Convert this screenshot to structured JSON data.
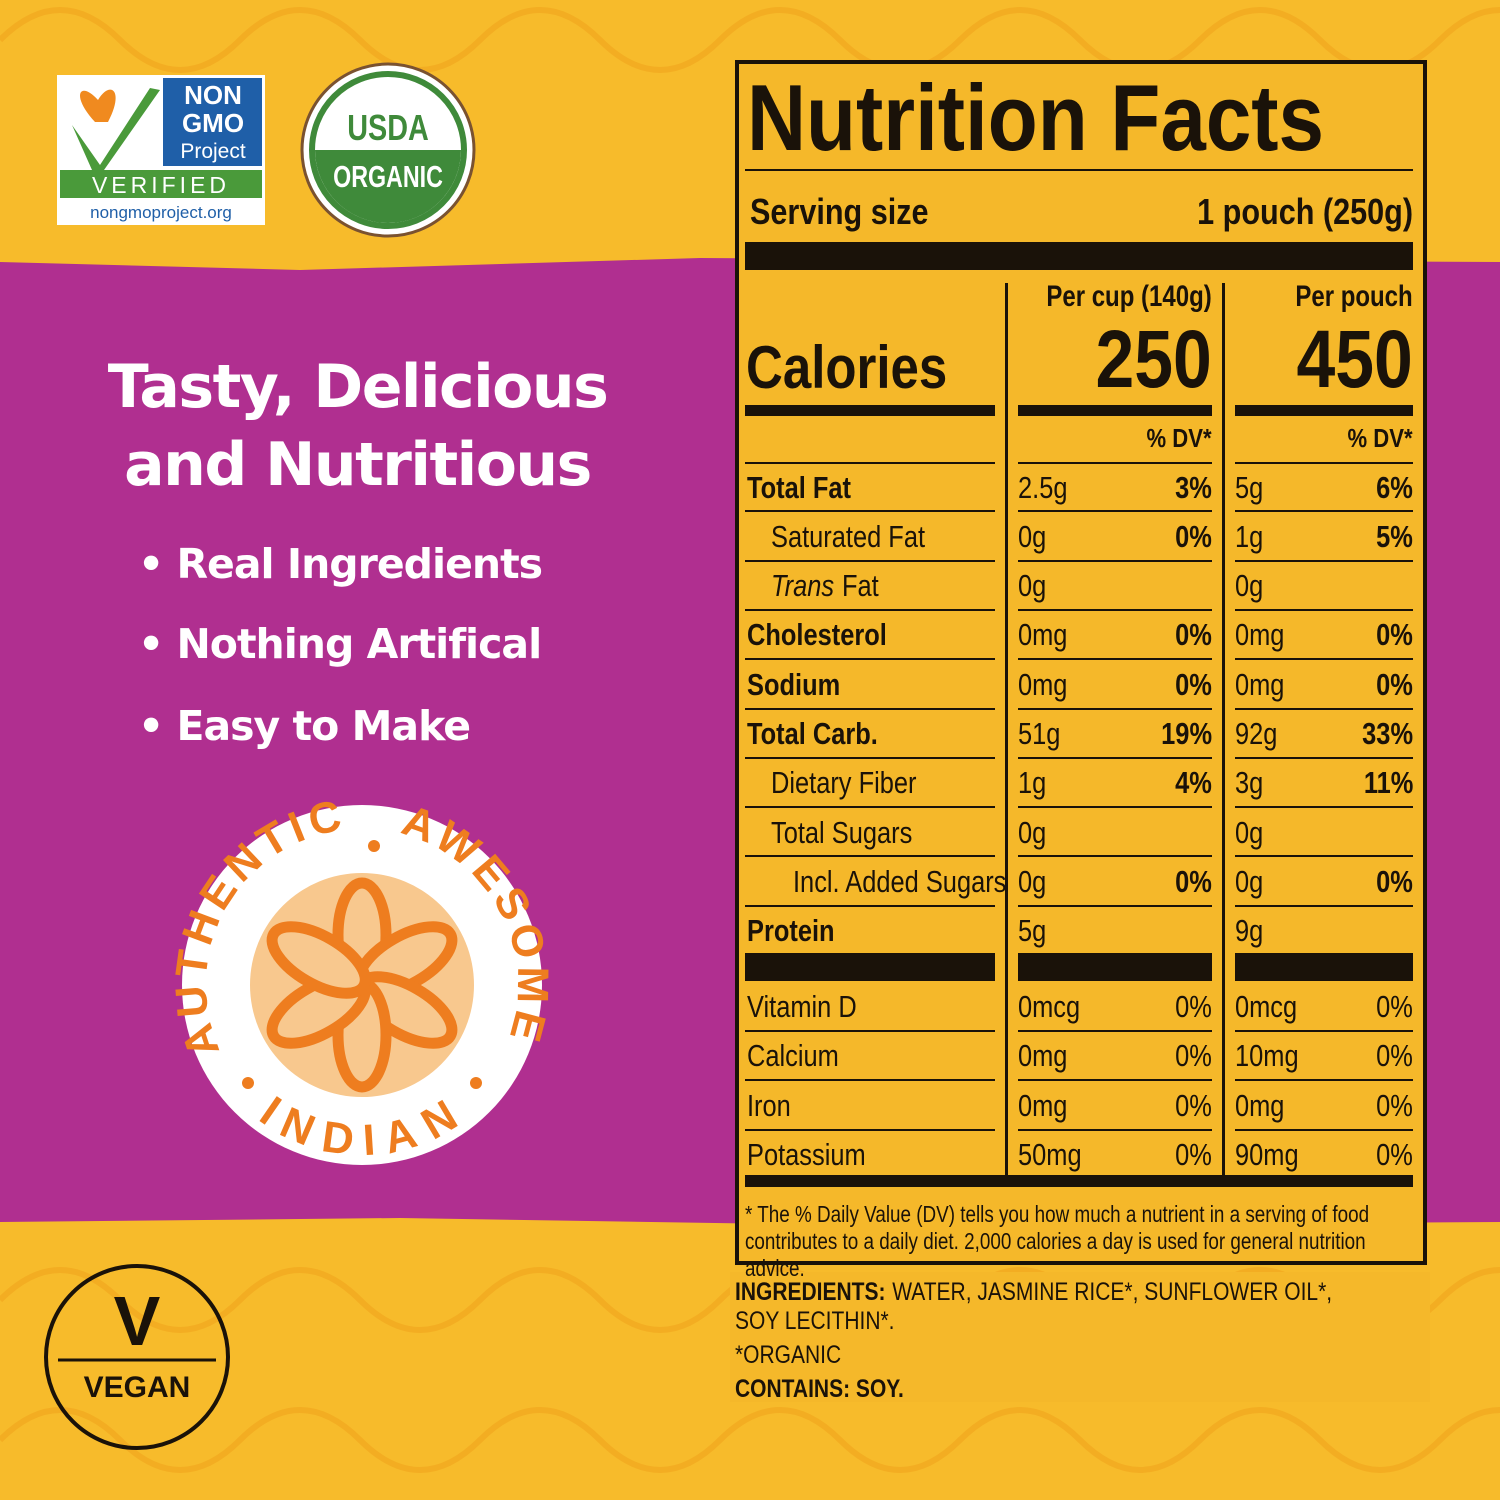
{
  "badges": {
    "non_gmo": {
      "lines": [
        "NON",
        "GMO",
        "Project"
      ],
      "verified": "VERIFIED",
      "url": "nongmoproject.org"
    },
    "usda": {
      "top": "USDA",
      "bottom": "ORGANIC"
    },
    "seal": {
      "left": "AUTHENTIC",
      "right": "AWESOME",
      "bottom": "INDIAN"
    },
    "vegan": {
      "letter": "V",
      "label": "VEGAN"
    }
  },
  "headline": [
    "Tasty, Delicious",
    "and Nutritious"
  ],
  "bullets": [
    "• Real Ingredients",
    "• Nothing Artifical",
    "• Easy to Make"
  ],
  "nutrition": {
    "title": "Nutrition Facts",
    "serving": {
      "label": "Serving size",
      "value": "1 pouch (250g)"
    },
    "calories_label": "Calories",
    "columns": [
      {
        "header": "Per cup (140g)",
        "calories": "250",
        "dv_header": "% DV*"
      },
      {
        "header": "Per pouch",
        "calories": "450",
        "dv_header": "% DV*"
      }
    ],
    "rows": [
      {
        "name": "Total Fat",
        "weight": "bold",
        "indent": 0,
        "cells": [
          [
            "2.5g",
            "3%"
          ],
          [
            "5g",
            "6%"
          ]
        ]
      },
      {
        "name": "Saturated Fat",
        "weight": "normal",
        "indent": 1,
        "cells": [
          [
            "0g",
            "0%"
          ],
          [
            "1g",
            "5%"
          ]
        ]
      },
      {
        "italic": "Trans",
        "name": "Fat",
        "weight": "normal",
        "indent": 1,
        "cells": [
          [
            "0g",
            null
          ],
          [
            "0g",
            null
          ]
        ]
      },
      {
        "name": "Cholesterol",
        "weight": "bold",
        "indent": 0,
        "cells": [
          [
            "0mg",
            "0%"
          ],
          [
            "0mg",
            "0%"
          ]
        ]
      },
      {
        "name": "Sodium",
        "weight": "bold",
        "indent": 0,
        "cells": [
          [
            "0mg",
            "0%"
          ],
          [
            "0mg",
            "0%"
          ]
        ]
      },
      {
        "name": "Total Carb.",
        "weight": "bold",
        "indent": 0,
        "cells": [
          [
            "51g",
            "19%"
          ],
          [
            "92g",
            "33%"
          ]
        ]
      },
      {
        "name": "Dietary Fiber",
        "weight": "normal",
        "indent": 1,
        "cells": [
          [
            "1g",
            "4%"
          ],
          [
            "3g",
            "11%"
          ]
        ]
      },
      {
        "name": "Total Sugars",
        "weight": "normal",
        "indent": 1,
        "cells": [
          [
            "0g",
            null
          ],
          [
            "0g",
            null
          ]
        ]
      },
      {
        "name": "Incl. Added Sugars",
        "weight": "normal",
        "indent": 2,
        "cells": [
          [
            "0g",
            "0%"
          ],
          [
            "0g",
            "0%"
          ]
        ]
      },
      {
        "name": "Protein",
        "weight": "bold",
        "indent": 0,
        "cells": [
          [
            "5g",
            null
          ],
          [
            "9g",
            null
          ]
        ]
      }
    ],
    "vitamins": [
      {
        "name": "Vitamin D",
        "cells": [
          [
            "0mcg",
            "0%"
          ],
          [
            "0mcg",
            "0%"
          ]
        ]
      },
      {
        "name": "Calcium",
        "cells": [
          [
            "0mg",
            "0%"
          ],
          [
            "10mg",
            "0%"
          ]
        ]
      },
      {
        "name": "Iron",
        "cells": [
          [
            "0mg",
            "0%"
          ],
          [
            "0mg",
            "0%"
          ]
        ]
      },
      {
        "name": "Potassium",
        "cells": [
          [
            "50mg",
            "0%"
          ],
          [
            "90mg",
            "0%"
          ]
        ]
      }
    ],
    "footnote": "* The % Daily Value (DV) tells you how much a nutrient in a serving of food contributes to a daily diet. 2,000 calories a day is used for general nutrition advice."
  },
  "ingredients": {
    "label": "INGREDIENTS:",
    "text": "WATER, JASMINE RICE*, SUNFLOWER OIL*, SOY LECITHIN*.",
    "organic": "*ORGANIC",
    "contains": "CONTAINS: SOY."
  }
}
